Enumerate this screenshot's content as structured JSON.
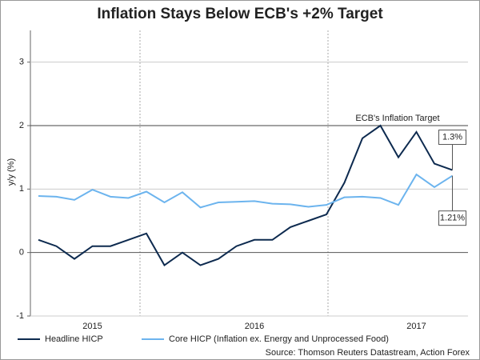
{
  "chart_data": {
    "type": "line",
    "title": "Inflation Stays Below ECB's +2% Target",
    "y_label": "y/y (%)",
    "categories": [
      null,
      null,
      null,
      "2015",
      null,
      null,
      null,
      null,
      null,
      null,
      null,
      null,
      "2016",
      null,
      null,
      null,
      null,
      null,
      null,
      null,
      null,
      "2017",
      null,
      null
    ],
    "series": [
      {
        "name": "Headline HICP",
        "color": "#0d2a4f",
        "values": [
          0.2,
          0.1,
          -0.1,
          0.1,
          0.1,
          0.2,
          0.3,
          -0.2,
          0.0,
          -0.2,
          -0.1,
          0.1,
          0.2,
          0.2,
          0.4,
          0.5,
          0.6,
          1.1,
          1.8,
          2.0,
          1.5,
          1.9,
          1.4,
          1.3
        ],
        "value_labels": [
          null,
          null,
          null,
          null,
          null,
          null,
          null,
          null,
          null,
          null,
          null,
          null,
          null,
          null,
          null,
          null,
          null,
          null,
          null,
          null,
          null,
          null,
          null,
          "1.3%"
        ]
      },
      {
        "name": "Core HICP (Inflation ex. Energy and Unprocessed Food)",
        "color": "#6cb4ee",
        "values": [
          0.89,
          0.88,
          0.83,
          0.99,
          0.88,
          0.86,
          0.96,
          0.79,
          0.95,
          0.71,
          0.79,
          0.8,
          0.81,
          0.77,
          0.76,
          0.72,
          0.75,
          0.87,
          0.88,
          0.86,
          0.75,
          1.23,
          1.03,
          1.21
        ],
        "value_labels": [
          null,
          null,
          null,
          null,
          null,
          null,
          null,
          null,
          null,
          null,
          null,
          null,
          null,
          null,
          null,
          null,
          null,
          null,
          null,
          null,
          null,
          null,
          null,
          "1.21%"
        ]
      }
    ],
    "target": {
      "value": 2,
      "label": "ECB's Inflation Target"
    },
    "ylim": [
      -1,
      3.5
    ],
    "yticks": [
      -1,
      0,
      1,
      2,
      3
    ],
    "grid": true,
    "source": "Source: Thomson Reuters Datastream, Action Forex"
  }
}
